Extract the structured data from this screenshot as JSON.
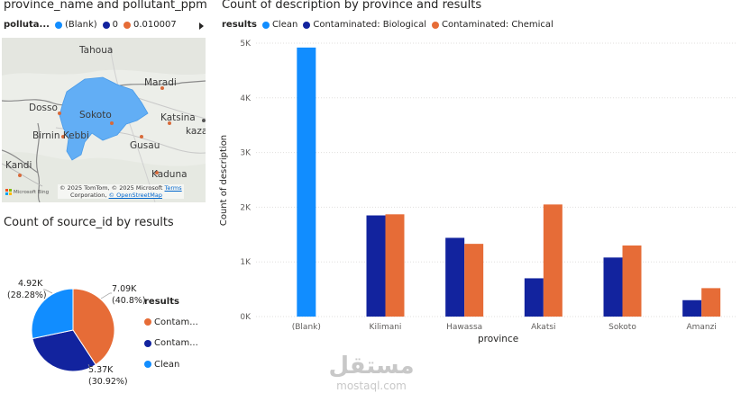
{
  "map_visual": {
    "title": "province_name and pollutant_ppm",
    "legend_title": "polluta...",
    "legend_items": [
      {
        "label": "(Blank)",
        "color": "#118DFF"
      },
      {
        "label": "0",
        "color": "#12239E"
      },
      {
        "label": "0.010007",
        "color": "#E66C37"
      }
    ],
    "cities": [
      "Tahoua",
      "Maradi",
      "Dosso",
      "Sokoto",
      "Katsina",
      "Birnin Kebbi",
      "kaza",
      "Gusau",
      "Kandi",
      "Kaduna"
    ],
    "attribution": "© 2025 TomTom, © 2025 Microsoft Corporation, © OpenStreetMap",
    "attribution_line1": "© 2025 TomTom, © 2025 Microsoft",
    "attribution_terms": "Terms",
    "attribution_line2": "Corporation,",
    "attribution_osm": "© OpenStreetMap",
    "provider": "Microsoft Bing"
  },
  "pie_visual": {
    "title": "Count of source_id by results",
    "legend_title": "results",
    "legend_items": [
      {
        "label": "Contam...",
        "color": "#E66C37"
      },
      {
        "label": "Contam...",
        "color": "#12239E"
      },
      {
        "label": "Clean",
        "color": "#118DFF"
      }
    ],
    "labels": [
      {
        "value": "7.09K",
        "pct": "(40.8%)"
      },
      {
        "value": "5.37K",
        "pct": "(30.92%)"
      },
      {
        "value": "4.92K",
        "pct": "(28.28%)"
      }
    ]
  },
  "bar_visual": {
    "title": "Count of description by province and results",
    "legend_title": "results",
    "xlabel": "province",
    "ylabel": "Count of description",
    "yticks": [
      "5K",
      "4K",
      "3K",
      "2K",
      "1K",
      "0K"
    ]
  },
  "chart_data": [
    {
      "type": "bar",
      "title": "Count of description by province and results",
      "xlabel": "province",
      "ylabel": "Count of description",
      "ylim": [
        0,
        5000
      ],
      "categories": [
        "(Blank)",
        "Kilimani",
        "Hawassa",
        "Akatsi",
        "Sokoto",
        "Amanzi"
      ],
      "series": [
        {
          "name": "Clean",
          "color": "#118DFF",
          "values": [
            4920,
            0,
            0,
            0,
            0,
            0
          ]
        },
        {
          "name": "Contaminated: Biological",
          "color": "#12239E",
          "values": [
            0,
            1850,
            1440,
            700,
            1080,
            300
          ]
        },
        {
          "name": "Contaminated: Chemical",
          "color": "#E66C37",
          "values": [
            0,
            1870,
            1330,
            2050,
            1300,
            520
          ]
        }
      ],
      "grid": true,
      "legend": "top-left"
    },
    {
      "type": "pie",
      "title": "Count of source_id by results",
      "slices": [
        {
          "color": "#E66C37",
          "value": 7090,
          "pct": 40.8
        },
        {
          "color": "#12239E",
          "value": 5370,
          "pct": 30.92
        },
        {
          "name": "Clean",
          "color": "#118DFF",
          "value": 4920,
          "pct": 28.28
        }
      ],
      "legend": "right"
    }
  ],
  "watermark": {
    "arabic": "مستقل",
    "latin": "mostaql.com"
  }
}
